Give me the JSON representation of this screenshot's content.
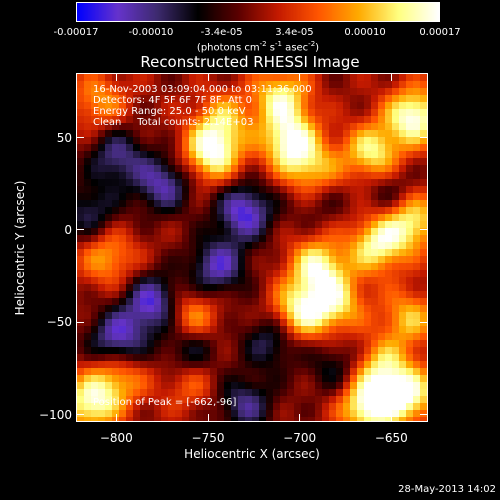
{
  "colorbar": {
    "tick_labels": [
      "-0.00017",
      "-0.00010",
      "-3.4e-05",
      "3.4e-05",
      "0.00010",
      "0.00017"
    ],
    "tick_values": [
      -0.00017,
      -0.0001,
      -3.4e-05,
      3.4e-05,
      0.0001,
      0.00017
    ],
    "range": [
      -0.00017,
      0.00017
    ],
    "unit_parts": [
      "(photons cm",
      "-2",
      " s",
      "-1",
      " asec",
      "-2",
      ")"
    ]
  },
  "chart_data": {
    "type": "heatmap",
    "title": "Reconstructed RHESSI Image",
    "xlabel": "Heliocentric X (arcsec)",
    "ylabel": "Heliocentric Y (arcsec)",
    "xlim": [
      -822,
      -630
    ],
    "ylim": [
      -104,
      85
    ],
    "x_ticks": [
      -800,
      -750,
      -700,
      -650
    ],
    "y_ticks": [
      -100,
      -50,
      0,
      50
    ],
    "x_tick_labels": [
      "−800",
      "−750",
      "−700",
      "−650"
    ],
    "y_tick_labels": [
      "−100",
      "−50",
      "0",
      "50"
    ],
    "colormap": [
      "#0000ff",
      "#6633cc",
      "#3d2a6e",
      "#000000",
      "#5a0000",
      "#c41a00",
      "#ff5500",
      "#ffaa00",
      "#ffff80",
      "#ffffff"
    ],
    "annotations": [
      "16-Nov-2003 03:09:04.000 to 03:11:36.000",
      "Detectors: 4F 5F 6F 7F 8F, Att 0",
      "Energy Range: 25.0 - 50.0 keV",
      "Clean     Total counts: 2.14E+03"
    ],
    "peak_label": "Position of Peak = [-662,-96]",
    "peak_position": [
      -662,
      -96
    ],
    "blobs": [
      {
        "x": -662,
        "y": -96,
        "v": 1.0
      },
      {
        "x": -640,
        "y": -90,
        "v": 0.85
      },
      {
        "x": -815,
        "y": -95,
        "v": 0.85
      },
      {
        "x": -800,
        "y": -80,
        "v": 0.6
      },
      {
        "x": -748,
        "y": 42,
        "v": 0.95
      },
      {
        "x": -705,
        "y": 48,
        "v": 0.95
      },
      {
        "x": -692,
        "y": 30,
        "v": 0.75
      },
      {
        "x": -660,
        "y": 42,
        "v": 0.8
      },
      {
        "x": -637,
        "y": 62,
        "v": 1.0
      },
      {
        "x": -710,
        "y": 72,
        "v": 0.8
      },
      {
        "x": -690,
        "y": -20,
        "v": 0.85
      },
      {
        "x": -700,
        "y": -45,
        "v": 0.85
      },
      {
        "x": -680,
        "y": -40,
        "v": 0.7
      },
      {
        "x": -657,
        "y": -8,
        "v": 0.85
      },
      {
        "x": -638,
        "y": 5,
        "v": 0.8
      },
      {
        "x": -640,
        "y": -48,
        "v": 0.6
      },
      {
        "x": -760,
        "y": -48,
        "v": 0.65
      },
      {
        "x": -805,
        "y": -15,
        "v": 0.55
      },
      {
        "x": -810,
        "y": 70,
        "v": 0.5
      },
      {
        "x": -742,
        "y": 60,
        "v": 0.55
      },
      {
        "x": -655,
        "y": -75,
        "v": 0.65
      },
      {
        "x": -760,
        "y": -82,
        "v": 0.4
      },
      {
        "x": -775,
        "y": 25,
        "v": -0.7
      },
      {
        "x": -800,
        "y": 40,
        "v": -0.6
      },
      {
        "x": -730,
        "y": 10,
        "v": -0.85
      },
      {
        "x": -745,
        "y": -20,
        "v": -0.75
      },
      {
        "x": -780,
        "y": -40,
        "v": -0.85
      },
      {
        "x": -760,
        "y": -65,
        "v": -0.6
      },
      {
        "x": -800,
        "y": -60,
        "v": -0.8
      },
      {
        "x": -730,
        "y": -95,
        "v": -0.6
      },
      {
        "x": -715,
        "y": -60,
        "v": -0.55
      },
      {
        "x": -690,
        "y": 20,
        "v": -0.4
      },
      {
        "x": -650,
        "y": 20,
        "v": -0.35
      },
      {
        "x": -815,
        "y": 10,
        "v": -0.5
      },
      {
        "x": -680,
        "y": -75,
        "v": -0.4
      }
    ]
  },
  "timestamp": "28-May-2013 14:02"
}
